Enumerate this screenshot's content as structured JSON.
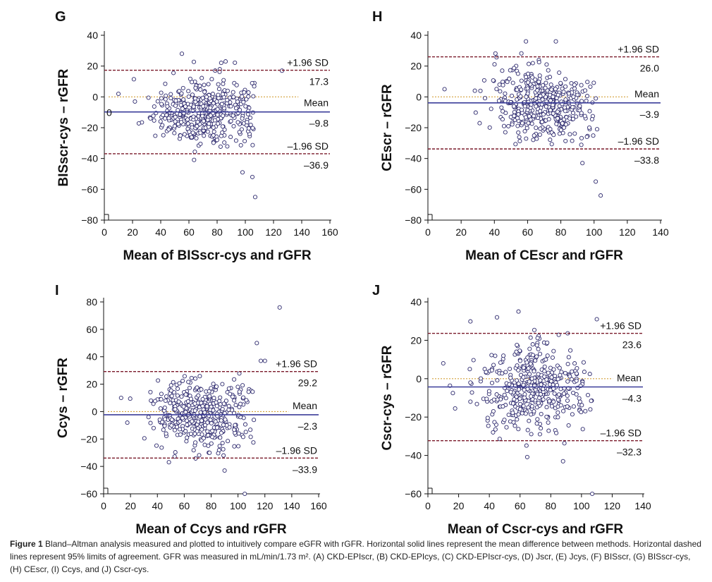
{
  "figure": {
    "caption_label": "Figure 1",
    "caption_text": " Bland–Altman analysis measured and plotted to intuitively compare eGFR with rGFR. Horizontal solid lines represent the mean difference between methods. Horizontal dashed lines represent 95% limits of agreement. GFR was measured in mL/min/1.73 m². (A) CKD-EPIscr, (B) CKD-EPIcys, (C) CKD-EPIscr-cys, (D) Jscr, (E) Jcys, (F) BISscr, (G) BISscr-cys, (H) CEscr, (I) Ccys, and (J) Cscr-cys."
  },
  "colors": {
    "mean_line": "#3b3d9a",
    "sd_line": "#7a1a2a",
    "zero_line": "#d4a13a",
    "marker": "#2e2a6e",
    "axis": "#111111"
  },
  "chart_data": [
    {
      "type": "scatter",
      "panel": "G",
      "xlabel": "Mean of BISscr-cys and rGFR",
      "ylabel": "BISscr-cys – rGFR",
      "xlim": [
        0,
        160
      ],
      "ylim": [
        -80,
        40
      ],
      "xticks": [
        0,
        20,
        40,
        60,
        80,
        100,
        120,
        140,
        160
      ],
      "yticks": [
        -80,
        -60,
        -40,
        -20,
        0,
        20,
        40
      ],
      "mean": -9.8,
      "upper_sd": 17.3,
      "lower_sd": -36.9,
      "labels": {
        "upper": "+1.96 SD",
        "upper_val": "17.3",
        "mean": "Mean",
        "mean_val": "–9.8",
        "lower": "–1.96 SD",
        "lower_val": "–36.9",
        "extra": "0"
      },
      "cloud": {
        "seed": 7,
        "n": 430,
        "xc": 72,
        "xs": 18,
        "xmin": 12,
        "xmax": 128,
        "xcap": 108,
        "spread": 11,
        "trend": -0.08
      },
      "outliers": [
        [
          55,
          28
        ],
        [
          86,
          23
        ],
        [
          126,
          17
        ],
        [
          105,
          -52
        ],
        [
          107,
          -65
        ],
        [
          10,
          2
        ],
        [
          98,
          -49
        ]
      ]
    },
    {
      "type": "scatter",
      "panel": "H",
      "xlabel": "Mean of CEscr and rGFR",
      "ylabel": "CEscr – rGFR",
      "xlim": [
        0,
        140
      ],
      "ylim": [
        -80,
        40
      ],
      "xticks": [
        0,
        20,
        40,
        60,
        80,
        100,
        120,
        140
      ],
      "yticks": [
        -80,
        -60,
        -40,
        -20,
        0,
        20,
        40
      ],
      "mean": -3.9,
      "upper_sd": 26.0,
      "lower_sd": -33.8,
      "labels": {
        "upper": "+1.96 SD",
        "upper_val": "26.0",
        "mean": "Mean",
        "mean_val": "–3.9",
        "lower": "–1.96 SD",
        "lower_val": "–33.8"
      },
      "cloud": {
        "seed": 19,
        "n": 430,
        "xc": 68,
        "xs": 16,
        "xmin": 12,
        "xmax": 105,
        "xcap": 105,
        "spread": 12,
        "trend": -0.55
      },
      "outliers": [
        [
          59,
          36
        ],
        [
          77,
          36
        ],
        [
          10,
          5
        ],
        [
          101,
          -55
        ],
        [
          104,
          -64
        ],
        [
          93,
          -43
        ]
      ]
    },
    {
      "type": "scatter",
      "panel": "I",
      "xlabel": "Mean of Ccys and rGFR",
      "ylabel": "Ccys – rGFR",
      "xlim": [
        0,
        160
      ],
      "ylim": [
        -60,
        80
      ],
      "xticks": [
        0,
        20,
        40,
        60,
        80,
        100,
        120,
        140,
        160
      ],
      "yticks": [
        -60,
        -40,
        -20,
        0,
        20,
        40,
        60,
        80
      ],
      "mean": -2.3,
      "upper_sd": 29.2,
      "lower_sd": -33.9,
      "labels": {
        "upper": "+1.96 SD",
        "upper_val": "29.2",
        "mean": "Mean",
        "mean_val": "–2.3",
        "lower": "–1.96 SD",
        "lower_val": "–33.9"
      },
      "cloud": {
        "seed": 31,
        "n": 430,
        "xc": 72,
        "xs": 18,
        "xmin": 14,
        "xmax": 125,
        "xcap": 112,
        "spread": 13,
        "trend": -0.02
      },
      "outliers": [
        [
          131,
          76
        ],
        [
          114,
          50
        ],
        [
          117,
          37
        ],
        [
          120,
          37
        ],
        [
          105,
          -60
        ],
        [
          90,
          -43
        ],
        [
          13,
          10
        ]
      ]
    },
    {
      "type": "scatter",
      "panel": "J",
      "xlabel": "Mean of Cscr-cys and rGFR",
      "ylabel": "Cscr-cys – rGFR",
      "xlim": [
        0,
        140
      ],
      "ylim": [
        -60,
        40
      ],
      "xticks": [
        0,
        20,
        40,
        60,
        80,
        100,
        120,
        140
      ],
      "yticks": [
        -60,
        -40,
        -20,
        0,
        20,
        40
      ],
      "mean": -4.3,
      "upper_sd": 23.6,
      "lower_sd": -32.3,
      "labels": {
        "upper": "+1.96 SD",
        "upper_val": "23.6",
        "mean": "Mean",
        "mean_val": "–4.3",
        "lower": "–1.96 SD",
        "lower_val": "–32.3"
      },
      "cloud": {
        "seed": 43,
        "n": 430,
        "xc": 68,
        "xs": 18,
        "xmin": 12,
        "xmax": 118,
        "xcap": 112,
        "spread": 12,
        "trend": -0.06
      },
      "outliers": [
        [
          45,
          32
        ],
        [
          59,
          35
        ],
        [
          110,
          31
        ],
        [
          107,
          -60
        ],
        [
          88,
          -43
        ],
        [
          10,
          8
        ]
      ]
    }
  ]
}
